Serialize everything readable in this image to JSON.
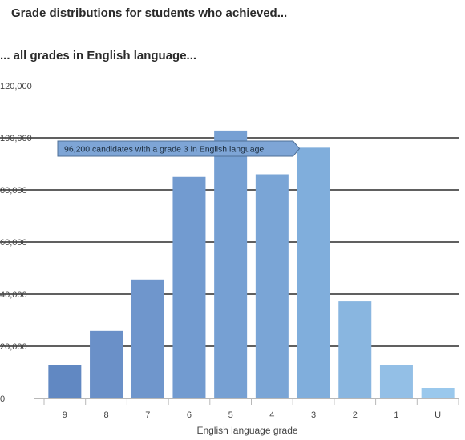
{
  "heading": "Grade distributions for students who achieved...",
  "subheading": "... all grades in English language...",
  "chart_data": {
    "type": "bar",
    "title": "",
    "xlabel": "English language grade",
    "ylabel": "",
    "categories": [
      "9",
      "8",
      "7",
      "6",
      "5",
      "4",
      "3",
      "2",
      "1",
      "U"
    ],
    "values": [
      12800,
      25900,
      45600,
      85000,
      102800,
      86000,
      96200,
      37200,
      12700,
      4000
    ],
    "ylim": [
      0,
      120000
    ],
    "yticks": [
      0,
      20000,
      40000,
      60000,
      80000,
      100000,
      120000
    ],
    "ytick_labels": [
      "0",
      "20,000",
      "40,000",
      "60,000",
      "80,000",
      "100,000",
      "120,000"
    ],
    "grid": true,
    "bar_colors": [
      "#6188c2",
      "#6a90c8",
      "#6f96cc",
      "#729bd0",
      "#76a0d3",
      "#7aa5d6",
      "#80aedc",
      "#89b6e0",
      "#93bfe6",
      "#9ac8ec"
    ],
    "tooltip": {
      "text": "96,200 candidates with a grade 3 in English language",
      "category": "3",
      "value": 96200,
      "color": "#7ea5d6"
    }
  }
}
